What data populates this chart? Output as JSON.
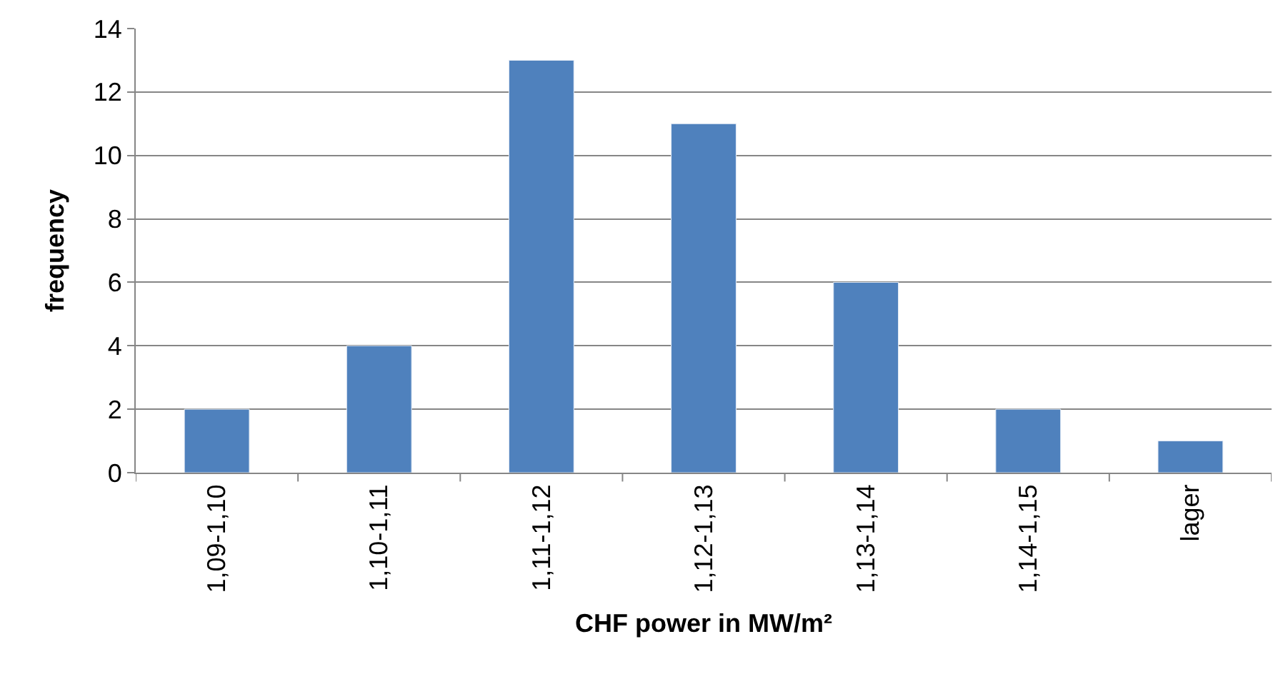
{
  "chart_data": {
    "type": "bar",
    "xlabel": "CHF power in MW/m²",
    "ylabel": "frequency",
    "categories": [
      "1,09-1,10",
      "1,10-1,11",
      "1,11-1,12",
      "1,12-1,13",
      "1,13-1,14",
      "1,14-1,15",
      "lager"
    ],
    "values": [
      2,
      4,
      13,
      11,
      6,
      2,
      1
    ],
    "color": "#4f81bd",
    "ylim": [
      0,
      14
    ],
    "yticks": [
      0,
      2,
      4,
      6,
      8,
      10,
      12,
      14
    ],
    "grid": "y",
    "legend": false
  }
}
